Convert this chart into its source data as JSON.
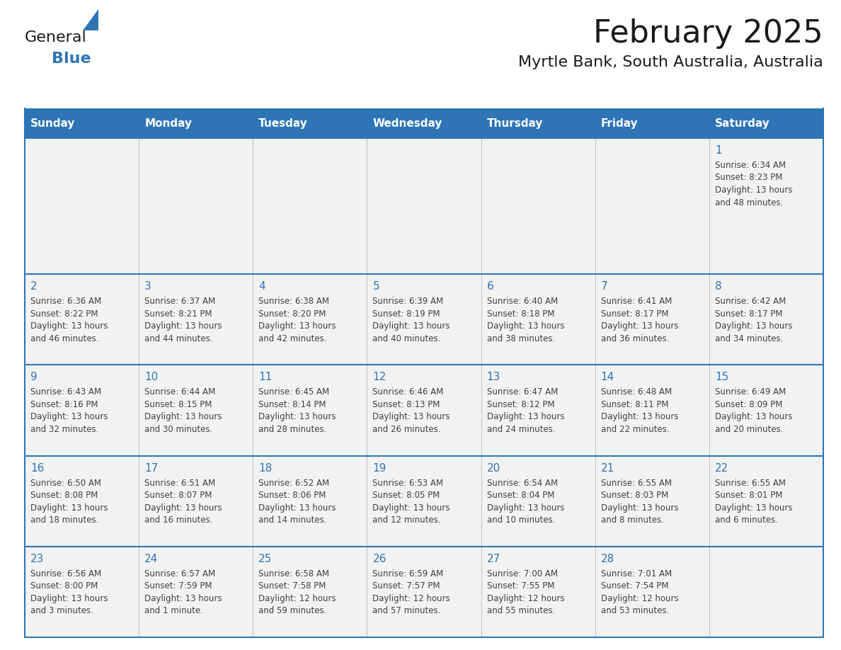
{
  "title": "February 2025",
  "subtitle": "Myrtle Bank, South Australia, Australia",
  "header_bg": "#2E75B6",
  "header_text_color": "#FFFFFF",
  "cell_bg": "#F2F2F2",
  "cell_bg_alt": "#FFFFFF",
  "grid_line_color": "#2E75B6",
  "day_number_color": "#2E75B6",
  "cell_text_color": "#404040",
  "days_of_week": [
    "Sunday",
    "Monday",
    "Tuesday",
    "Wednesday",
    "Thursday",
    "Friday",
    "Saturday"
  ],
  "weeks": [
    [
      null,
      null,
      null,
      null,
      null,
      null,
      {
        "day": 1,
        "sunrise": "6:34 AM",
        "sunset": "8:23 PM",
        "daylight": "13 hours\nand 48 minutes."
      }
    ],
    [
      {
        "day": 2,
        "sunrise": "6:36 AM",
        "sunset": "8:22 PM",
        "daylight": "13 hours\nand 46 minutes."
      },
      {
        "day": 3,
        "sunrise": "6:37 AM",
        "sunset": "8:21 PM",
        "daylight": "13 hours\nand 44 minutes."
      },
      {
        "day": 4,
        "sunrise": "6:38 AM",
        "sunset": "8:20 PM",
        "daylight": "13 hours\nand 42 minutes."
      },
      {
        "day": 5,
        "sunrise": "6:39 AM",
        "sunset": "8:19 PM",
        "daylight": "13 hours\nand 40 minutes."
      },
      {
        "day": 6,
        "sunrise": "6:40 AM",
        "sunset": "8:18 PM",
        "daylight": "13 hours\nand 38 minutes."
      },
      {
        "day": 7,
        "sunrise": "6:41 AM",
        "sunset": "8:17 PM",
        "daylight": "13 hours\nand 36 minutes."
      },
      {
        "day": 8,
        "sunrise": "6:42 AM",
        "sunset": "8:17 PM",
        "daylight": "13 hours\nand 34 minutes."
      }
    ],
    [
      {
        "day": 9,
        "sunrise": "6:43 AM",
        "sunset": "8:16 PM",
        "daylight": "13 hours\nand 32 minutes."
      },
      {
        "day": 10,
        "sunrise": "6:44 AM",
        "sunset": "8:15 PM",
        "daylight": "13 hours\nand 30 minutes."
      },
      {
        "day": 11,
        "sunrise": "6:45 AM",
        "sunset": "8:14 PM",
        "daylight": "13 hours\nand 28 minutes."
      },
      {
        "day": 12,
        "sunrise": "6:46 AM",
        "sunset": "8:13 PM",
        "daylight": "13 hours\nand 26 minutes."
      },
      {
        "day": 13,
        "sunrise": "6:47 AM",
        "sunset": "8:12 PM",
        "daylight": "13 hours\nand 24 minutes."
      },
      {
        "day": 14,
        "sunrise": "6:48 AM",
        "sunset": "8:11 PM",
        "daylight": "13 hours\nand 22 minutes."
      },
      {
        "day": 15,
        "sunrise": "6:49 AM",
        "sunset": "8:09 PM",
        "daylight": "13 hours\nand 20 minutes."
      }
    ],
    [
      {
        "day": 16,
        "sunrise": "6:50 AM",
        "sunset": "8:08 PM",
        "daylight": "13 hours\nand 18 minutes."
      },
      {
        "day": 17,
        "sunrise": "6:51 AM",
        "sunset": "8:07 PM",
        "daylight": "13 hours\nand 16 minutes."
      },
      {
        "day": 18,
        "sunrise": "6:52 AM",
        "sunset": "8:06 PM",
        "daylight": "13 hours\nand 14 minutes."
      },
      {
        "day": 19,
        "sunrise": "6:53 AM",
        "sunset": "8:05 PM",
        "daylight": "13 hours\nand 12 minutes."
      },
      {
        "day": 20,
        "sunrise": "6:54 AM",
        "sunset": "8:04 PM",
        "daylight": "13 hours\nand 10 minutes."
      },
      {
        "day": 21,
        "sunrise": "6:55 AM",
        "sunset": "8:03 PM",
        "daylight": "13 hours\nand 8 minutes."
      },
      {
        "day": 22,
        "sunrise": "6:55 AM",
        "sunset": "8:01 PM",
        "daylight": "13 hours\nand 6 minutes."
      }
    ],
    [
      {
        "day": 23,
        "sunrise": "6:56 AM",
        "sunset": "8:00 PM",
        "daylight": "13 hours\nand 3 minutes."
      },
      {
        "day": 24,
        "sunrise": "6:57 AM",
        "sunset": "7:59 PM",
        "daylight": "13 hours\nand 1 minute."
      },
      {
        "day": 25,
        "sunrise": "6:58 AM",
        "sunset": "7:58 PM",
        "daylight": "12 hours\nand 59 minutes."
      },
      {
        "day": 26,
        "sunrise": "6:59 AM",
        "sunset": "7:57 PM",
        "daylight": "12 hours\nand 57 minutes."
      },
      {
        "day": 27,
        "sunrise": "7:00 AM",
        "sunset": "7:55 PM",
        "daylight": "12 hours\nand 55 minutes."
      },
      {
        "day": 28,
        "sunrise": "7:01 AM",
        "sunset": "7:54 PM",
        "daylight": "12 hours\nand 53 minutes."
      },
      null
    ]
  ],
  "logo_text_general": "General",
  "logo_text_blue": "Blue",
  "logo_color_general": "#1a1a1a",
  "logo_color_blue": "#2E75B6",
  "logo_triangle_color": "#2E75B6",
  "title_fontsize": 32,
  "subtitle_fontsize": 16,
  "header_fontsize": 11,
  "day_num_fontsize": 11,
  "cell_text_fontsize": 8.5
}
